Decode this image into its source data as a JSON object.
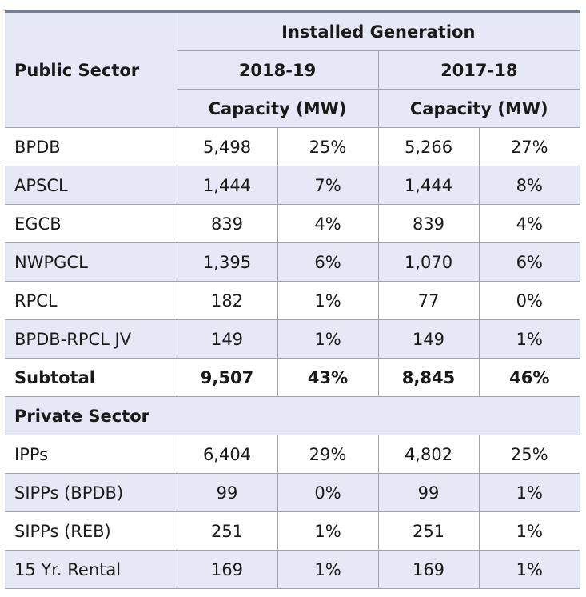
{
  "header": {
    "corner": "Public Sector",
    "group": "Installed Generation",
    "year_a": "2018-19",
    "year_b": "2017-18",
    "cap_a": "Capacity (MW)",
    "cap_b": "Capacity (MW)"
  },
  "public_rows": [
    {
      "name": "BPDB",
      "a_mw": "5,498",
      "a_pct": "25%",
      "b_mw": "5,266",
      "b_pct": "27%"
    },
    {
      "name": "APSCL",
      "a_mw": "1,444",
      "a_pct": "7%",
      "b_mw": "1,444",
      "b_pct": "8%"
    },
    {
      "name": "EGCB",
      "a_mw": "839",
      "a_pct": "4%",
      "b_mw": "839",
      "b_pct": "4%"
    },
    {
      "name": "NWPGCL",
      "a_mw": "1,395",
      "a_pct": "6%",
      "b_mw": "1,070",
      "b_pct": "6%"
    },
    {
      "name": "RPCL",
      "a_mw": "182",
      "a_pct": "1%",
      "b_mw": "77",
      "b_pct": "0%"
    },
    {
      "name": "BPDB-RPCL JV",
      "a_mw": "149",
      "a_pct": "1%",
      "b_mw": "149",
      "b_pct": "1%"
    }
  ],
  "subtotal": {
    "name": "Subtotal",
    "a_mw": "9,507",
    "a_pct": "43%",
    "b_mw": "8,845",
    "b_pct": "46%"
  },
  "private_section": "Private Sector",
  "private_rows": [
    {
      "name": "IPPs",
      "a_mw": "6,404",
      "a_pct": "29%",
      "b_mw": "4,802",
      "b_pct": "25%"
    },
    {
      "name": "SIPPs (BPDB)",
      "a_mw": "99",
      "a_pct": "0%",
      "b_mw": "99",
      "b_pct": "1%"
    },
    {
      "name": "SIPPs (REB)",
      "a_mw": "251",
      "a_pct": "1%",
      "b_mw": "251",
      "b_pct": "1%"
    },
    {
      "name": "15 Yr. Rental",
      "a_mw": "169",
      "a_pct": "1%",
      "b_mw": "169",
      "b_pct": "1%"
    }
  ]
}
